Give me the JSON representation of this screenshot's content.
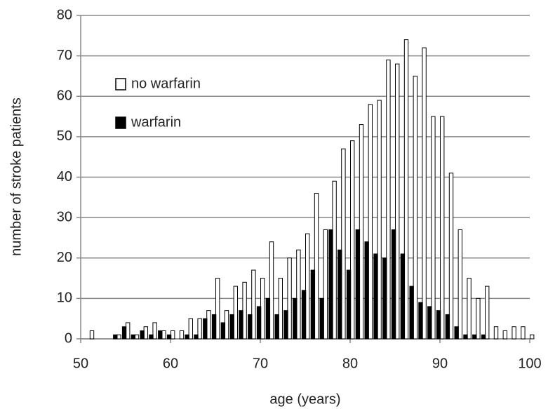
{
  "chart_data": {
    "type": "bar",
    "x_label": "age (years)",
    "y_label": "number of stroke patients",
    "x": [
      51,
      52,
      53,
      54,
      55,
      56,
      57,
      58,
      59,
      60,
      61,
      62,
      63,
      64,
      65,
      66,
      67,
      68,
      69,
      70,
      71,
      72,
      73,
      74,
      75,
      76,
      77,
      78,
      79,
      80,
      81,
      82,
      83,
      84,
      85,
      86,
      87,
      88,
      89,
      90,
      91,
      92,
      93,
      94,
      95,
      96,
      97,
      98,
      99,
      100
    ],
    "series": [
      {
        "name": "no warfarin",
        "color": "#ffffff",
        "values": [
          2,
          0,
          0,
          1,
          4,
          1,
          3,
          4,
          2,
          2,
          2,
          5,
          5,
          7,
          15,
          7,
          13,
          14,
          17,
          15,
          24,
          15,
          20,
          22,
          26,
          36,
          27,
          39,
          47,
          49,
          53,
          58,
          59,
          69,
          68,
          74,
          65,
          72,
          55,
          55,
          41,
          27,
          15,
          10,
          13,
          3,
          2,
          3,
          3,
          1
        ]
      },
      {
        "name": "warfarin",
        "color": "#000000",
        "values": [
          0,
          0,
          0,
          1,
          3,
          1,
          2,
          1,
          2,
          1,
          0,
          1,
          1,
          5,
          6,
          4,
          6,
          7,
          6,
          8,
          10,
          6,
          7,
          10,
          12,
          17,
          10,
          27,
          22,
          17,
          27,
          24,
          21,
          20,
          27,
          21,
          13,
          9,
          8,
          7,
          6,
          3,
          1,
          1,
          1,
          0,
          0,
          0,
          0,
          0
        ]
      }
    ],
    "xlim": [
      50,
      100
    ],
    "xticks": [
      50,
      60,
      70,
      80,
      90,
      100
    ],
    "ylim": [
      0,
      80
    ],
    "yticks": [
      0,
      10,
      20,
      30,
      40,
      50,
      60,
      70,
      80
    ],
    "grid": true,
    "legend": "upper-left"
  }
}
